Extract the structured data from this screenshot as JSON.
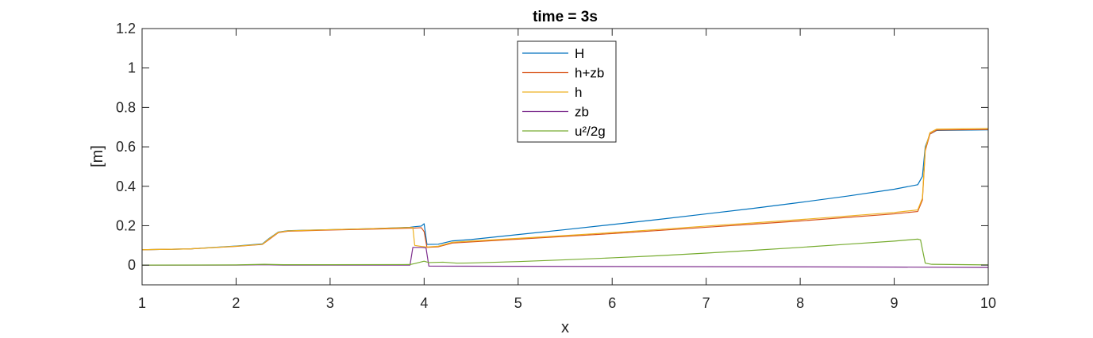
{
  "chart_data": {
    "type": "line",
    "title": "time = 3s",
    "xlabel": "x",
    "ylabel": "[m]",
    "xlim": [
      1,
      10
    ],
    "ylim": [
      -0.1,
      1.2
    ],
    "xticks": [
      1,
      2,
      3,
      4,
      5,
      6,
      7,
      8,
      9,
      10
    ],
    "yticks": [
      0,
      0.2,
      0.4,
      0.6,
      0.8,
      1,
      1.2
    ],
    "ytick_labels": [
      "0",
      "0.2",
      "0.4",
      "0.6",
      "0.8",
      "1",
      "1.2"
    ],
    "grid": false,
    "legend_position": "top-center",
    "series": [
      {
        "name": "H",
        "color": "#0072BD",
        "points": [
          [
            1,
            0.078
          ],
          [
            1.5,
            0.082
          ],
          [
            2,
            0.097
          ],
          [
            2.28,
            0.108
          ],
          [
            2.35,
            0.135
          ],
          [
            2.45,
            0.168
          ],
          [
            2.55,
            0.175
          ],
          [
            3,
            0.18
          ],
          [
            3.5,
            0.186
          ],
          [
            3.85,
            0.192
          ],
          [
            3.9,
            0.195
          ],
          [
            3.97,
            0.198
          ],
          [
            4.0,
            0.21
          ],
          [
            4.03,
            0.105
          ],
          [
            4.15,
            0.106
          ],
          [
            4.3,
            0.123
          ],
          [
            4.5,
            0.13
          ],
          [
            5,
            0.155
          ],
          [
            5.5,
            0.18
          ],
          [
            6,
            0.206
          ],
          [
            6.5,
            0.232
          ],
          [
            7,
            0.26
          ],
          [
            7.5,
            0.288
          ],
          [
            8,
            0.318
          ],
          [
            8.5,
            0.35
          ],
          [
            9,
            0.385
          ],
          [
            9.25,
            0.408
          ],
          [
            9.3,
            0.45
          ],
          [
            9.33,
            0.6
          ],
          [
            9.38,
            0.665
          ],
          [
            9.45,
            0.683
          ],
          [
            10,
            0.686
          ]
        ]
      },
      {
        "name": "h+zb",
        "color": "#D95319",
        "points": [
          [
            1,
            0.078
          ],
          [
            1.5,
            0.082
          ],
          [
            2,
            0.095
          ],
          [
            2.28,
            0.105
          ],
          [
            2.35,
            0.13
          ],
          [
            2.45,
            0.165
          ],
          [
            2.55,
            0.172
          ],
          [
            3,
            0.178
          ],
          [
            3.5,
            0.183
          ],
          [
            3.9,
            0.188
          ],
          [
            3.97,
            0.19
          ],
          [
            4.0,
            0.17
          ],
          [
            4.03,
            0.09
          ],
          [
            4.15,
            0.093
          ],
          [
            4.3,
            0.112
          ],
          [
            4.5,
            0.118
          ],
          [
            5,
            0.132
          ],
          [
            5.5,
            0.146
          ],
          [
            6,
            0.16
          ],
          [
            6.5,
            0.176
          ],
          [
            7,
            0.192
          ],
          [
            7.5,
            0.208
          ],
          [
            8,
            0.224
          ],
          [
            8.5,
            0.242
          ],
          [
            9,
            0.26
          ],
          [
            9.25,
            0.272
          ],
          [
            9.3,
            0.33
          ],
          [
            9.33,
            0.58
          ],
          [
            9.38,
            0.665
          ],
          [
            9.45,
            0.685
          ],
          [
            10,
            0.688
          ]
        ]
      },
      {
        "name": "h",
        "color": "#EDB120",
        "points": [
          [
            1,
            0.078
          ],
          [
            1.5,
            0.082
          ],
          [
            2,
            0.096
          ],
          [
            2.28,
            0.106
          ],
          [
            2.35,
            0.133
          ],
          [
            2.45,
            0.167
          ],
          [
            2.55,
            0.174
          ],
          [
            3,
            0.18
          ],
          [
            3.5,
            0.186
          ],
          [
            3.88,
            0.191
          ],
          [
            3.9,
            0.1
          ],
          [
            3.97,
            0.095
          ],
          [
            4.03,
            0.092
          ],
          [
            4.15,
            0.096
          ],
          [
            4.3,
            0.116
          ],
          [
            4.5,
            0.122
          ],
          [
            5,
            0.136
          ],
          [
            5.5,
            0.15
          ],
          [
            6,
            0.165
          ],
          [
            6.5,
            0.181
          ],
          [
            7,
            0.198
          ],
          [
            7.5,
            0.214
          ],
          [
            8,
            0.231
          ],
          [
            8.5,
            0.249
          ],
          [
            9,
            0.267
          ],
          [
            9.25,
            0.28
          ],
          [
            9.3,
            0.34
          ],
          [
            9.33,
            0.59
          ],
          [
            9.38,
            0.672
          ],
          [
            9.45,
            0.69
          ],
          [
            10,
            0.693
          ]
        ]
      },
      {
        "name": "zb",
        "color": "#7E2F8E",
        "points": [
          [
            1,
            0
          ],
          [
            2,
            0
          ],
          [
            2.3,
            0.002
          ],
          [
            2.5,
            0
          ],
          [
            3,
            0
          ],
          [
            3.85,
            0
          ],
          [
            3.88,
            0.09
          ],
          [
            3.97,
            0.09
          ],
          [
            4.02,
            0.088
          ],
          [
            4.05,
            -0.005
          ],
          [
            5,
            -0.006
          ],
          [
            6,
            -0.007
          ],
          [
            7,
            -0.008
          ],
          [
            8,
            -0.009
          ],
          [
            9,
            -0.01
          ],
          [
            10,
            -0.012
          ]
        ]
      },
      {
        "name": "u²/2g",
        "color": "#77AC30",
        "points": [
          [
            1,
            0
          ],
          [
            2,
            0.001
          ],
          [
            2.3,
            0.004
          ],
          [
            2.5,
            0.002
          ],
          [
            3,
            0.002
          ],
          [
            3.85,
            0.003
          ],
          [
            3.9,
            0.008
          ],
          [
            4.0,
            0.02
          ],
          [
            4.05,
            0.013
          ],
          [
            4.2,
            0.015
          ],
          [
            4.35,
            0.01
          ],
          [
            4.5,
            0.011
          ],
          [
            5,
            0.018
          ],
          [
            5.5,
            0.027
          ],
          [
            6,
            0.037
          ],
          [
            6.5,
            0.048
          ],
          [
            7,
            0.061
          ],
          [
            7.5,
            0.075
          ],
          [
            8,
            0.09
          ],
          [
            8.5,
            0.106
          ],
          [
            9,
            0.122
          ],
          [
            9.25,
            0.132
          ],
          [
            9.28,
            0.128
          ],
          [
            9.3,
            0.08
          ],
          [
            9.33,
            0.01
          ],
          [
            9.4,
            0.004
          ],
          [
            10,
            0.001
          ]
        ]
      }
    ]
  }
}
